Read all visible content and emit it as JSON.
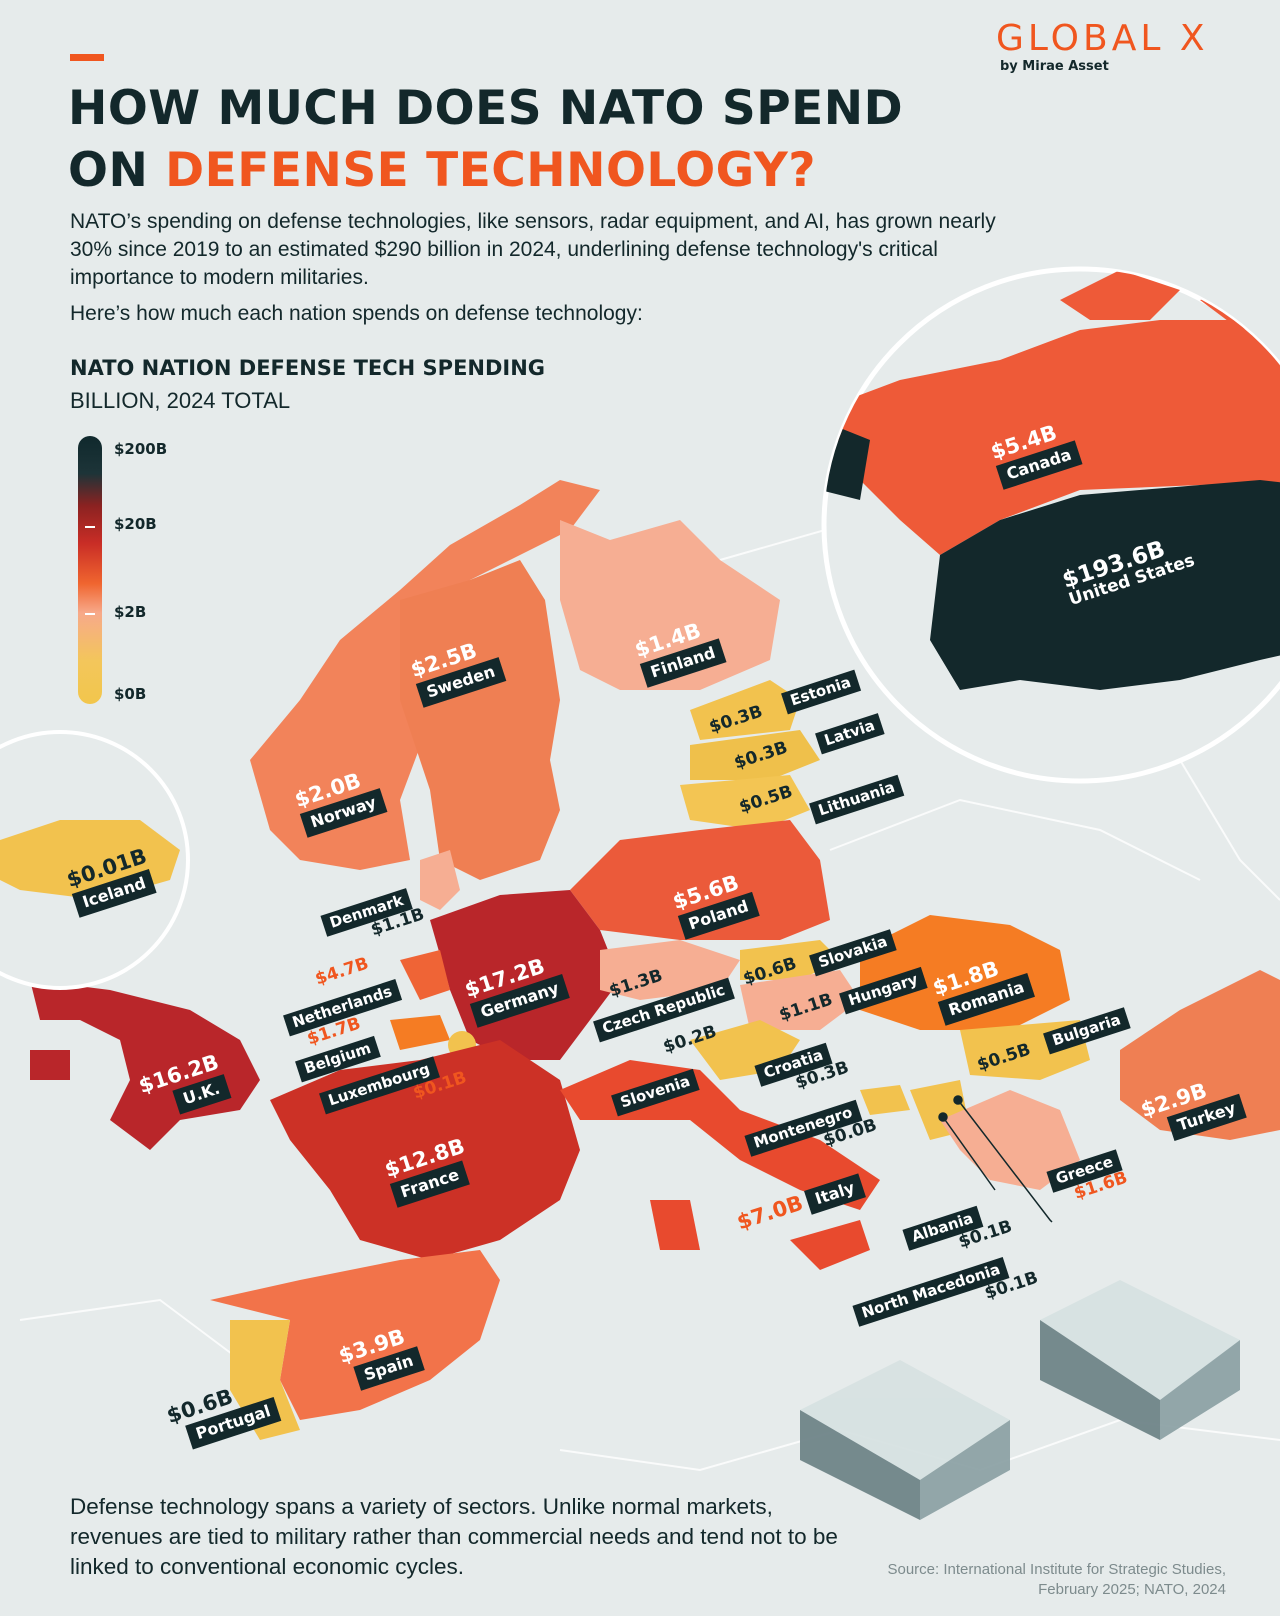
{
  "header": {
    "title_line1": "HOW MUCH DOES NATO SPEND",
    "title_line2_prefix": "ON ",
    "title_line2_highlight": "DEFENSE TECHNOLOGY?",
    "intro": "NATO’s spending on defense technologies, like sensors, radar equipment, and AI, has grown nearly 30% since 2019 to an estimated $290 billion in 2024, underlining defense technology's critical importance to modern militaries.",
    "intro2": "Here’s how much each nation spends on defense technology:"
  },
  "logo": {
    "name": "GLOBAL X",
    "sub": "by Mirae Asset"
  },
  "legend": {
    "title": "NATO NATION DEFENSE TECH SPENDING",
    "subtitle": "BILLION, 2024 TOTAL",
    "ticks": [
      "$200B",
      "$20B",
      "$2B",
      "$0B"
    ]
  },
  "colors": {
    "accent": "#f0561f",
    "dark": "#13282b",
    "background": "#e6ebeb"
  },
  "countries": [
    {
      "name": "United States",
      "value": "$193.6B"
    },
    {
      "name": "Canada",
      "value": "$5.4B"
    },
    {
      "name": "Iceland",
      "value": "$0.01B"
    },
    {
      "name": "Norway",
      "value": "$2.0B"
    },
    {
      "name": "Sweden",
      "value": "$2.5B"
    },
    {
      "name": "Finland",
      "value": "$1.4B"
    },
    {
      "name": "Estonia",
      "value": "$0.3B"
    },
    {
      "name": "Latvia",
      "value": "$0.3B"
    },
    {
      "name": "Lithuania",
      "value": "$0.5B"
    },
    {
      "name": "Denmark",
      "value": "$1.1B"
    },
    {
      "name": "Poland",
      "value": "$5.6B"
    },
    {
      "name": "Germany",
      "value": "$17.2B"
    },
    {
      "name": "Netherlands",
      "value": "$4.7B"
    },
    {
      "name": "Belgium",
      "value": "$1.7B"
    },
    {
      "name": "Luxembourg",
      "value": "$0.1B"
    },
    {
      "name": "U.K.",
      "value": "$16.2B"
    },
    {
      "name": "France",
      "value": "$12.8B"
    },
    {
      "name": "Czech Republic",
      "value": "$1.3B"
    },
    {
      "name": "Slovakia",
      "value": "$0.6B"
    },
    {
      "name": "Hungary",
      "value": "$1.1B"
    },
    {
      "name": "Romania",
      "value": "$1.8B"
    },
    {
      "name": "Bulgaria",
      "value": "$0.5B"
    },
    {
      "name": "Slovenia",
      "value": "$0.2B"
    },
    {
      "name": "Croatia",
      "value": "$0.3B"
    },
    {
      "name": "Montenegro",
      "value": "$0.0B"
    },
    {
      "name": "Italy",
      "value": "$7.0B"
    },
    {
      "name": "Albania",
      "value": "$0.1B"
    },
    {
      "name": "North Macedonia",
      "value": "$0.1B"
    },
    {
      "name": "Greece",
      "value": "$1.6B"
    },
    {
      "name": "Turkey",
      "value": "$2.9B"
    },
    {
      "name": "Spain",
      "value": "$3.9B"
    },
    {
      "name": "Portugal",
      "value": "$0.6B"
    }
  ],
  "footer": "Defense technology spans a variety of sectors. Unlike normal markets, revenues are tied to military rather than commercial needs and tend not to be linked to conventional economic cycles.",
  "source": "Source: International Institute for Strategic Studies, February 2025; NATO, 2024"
}
